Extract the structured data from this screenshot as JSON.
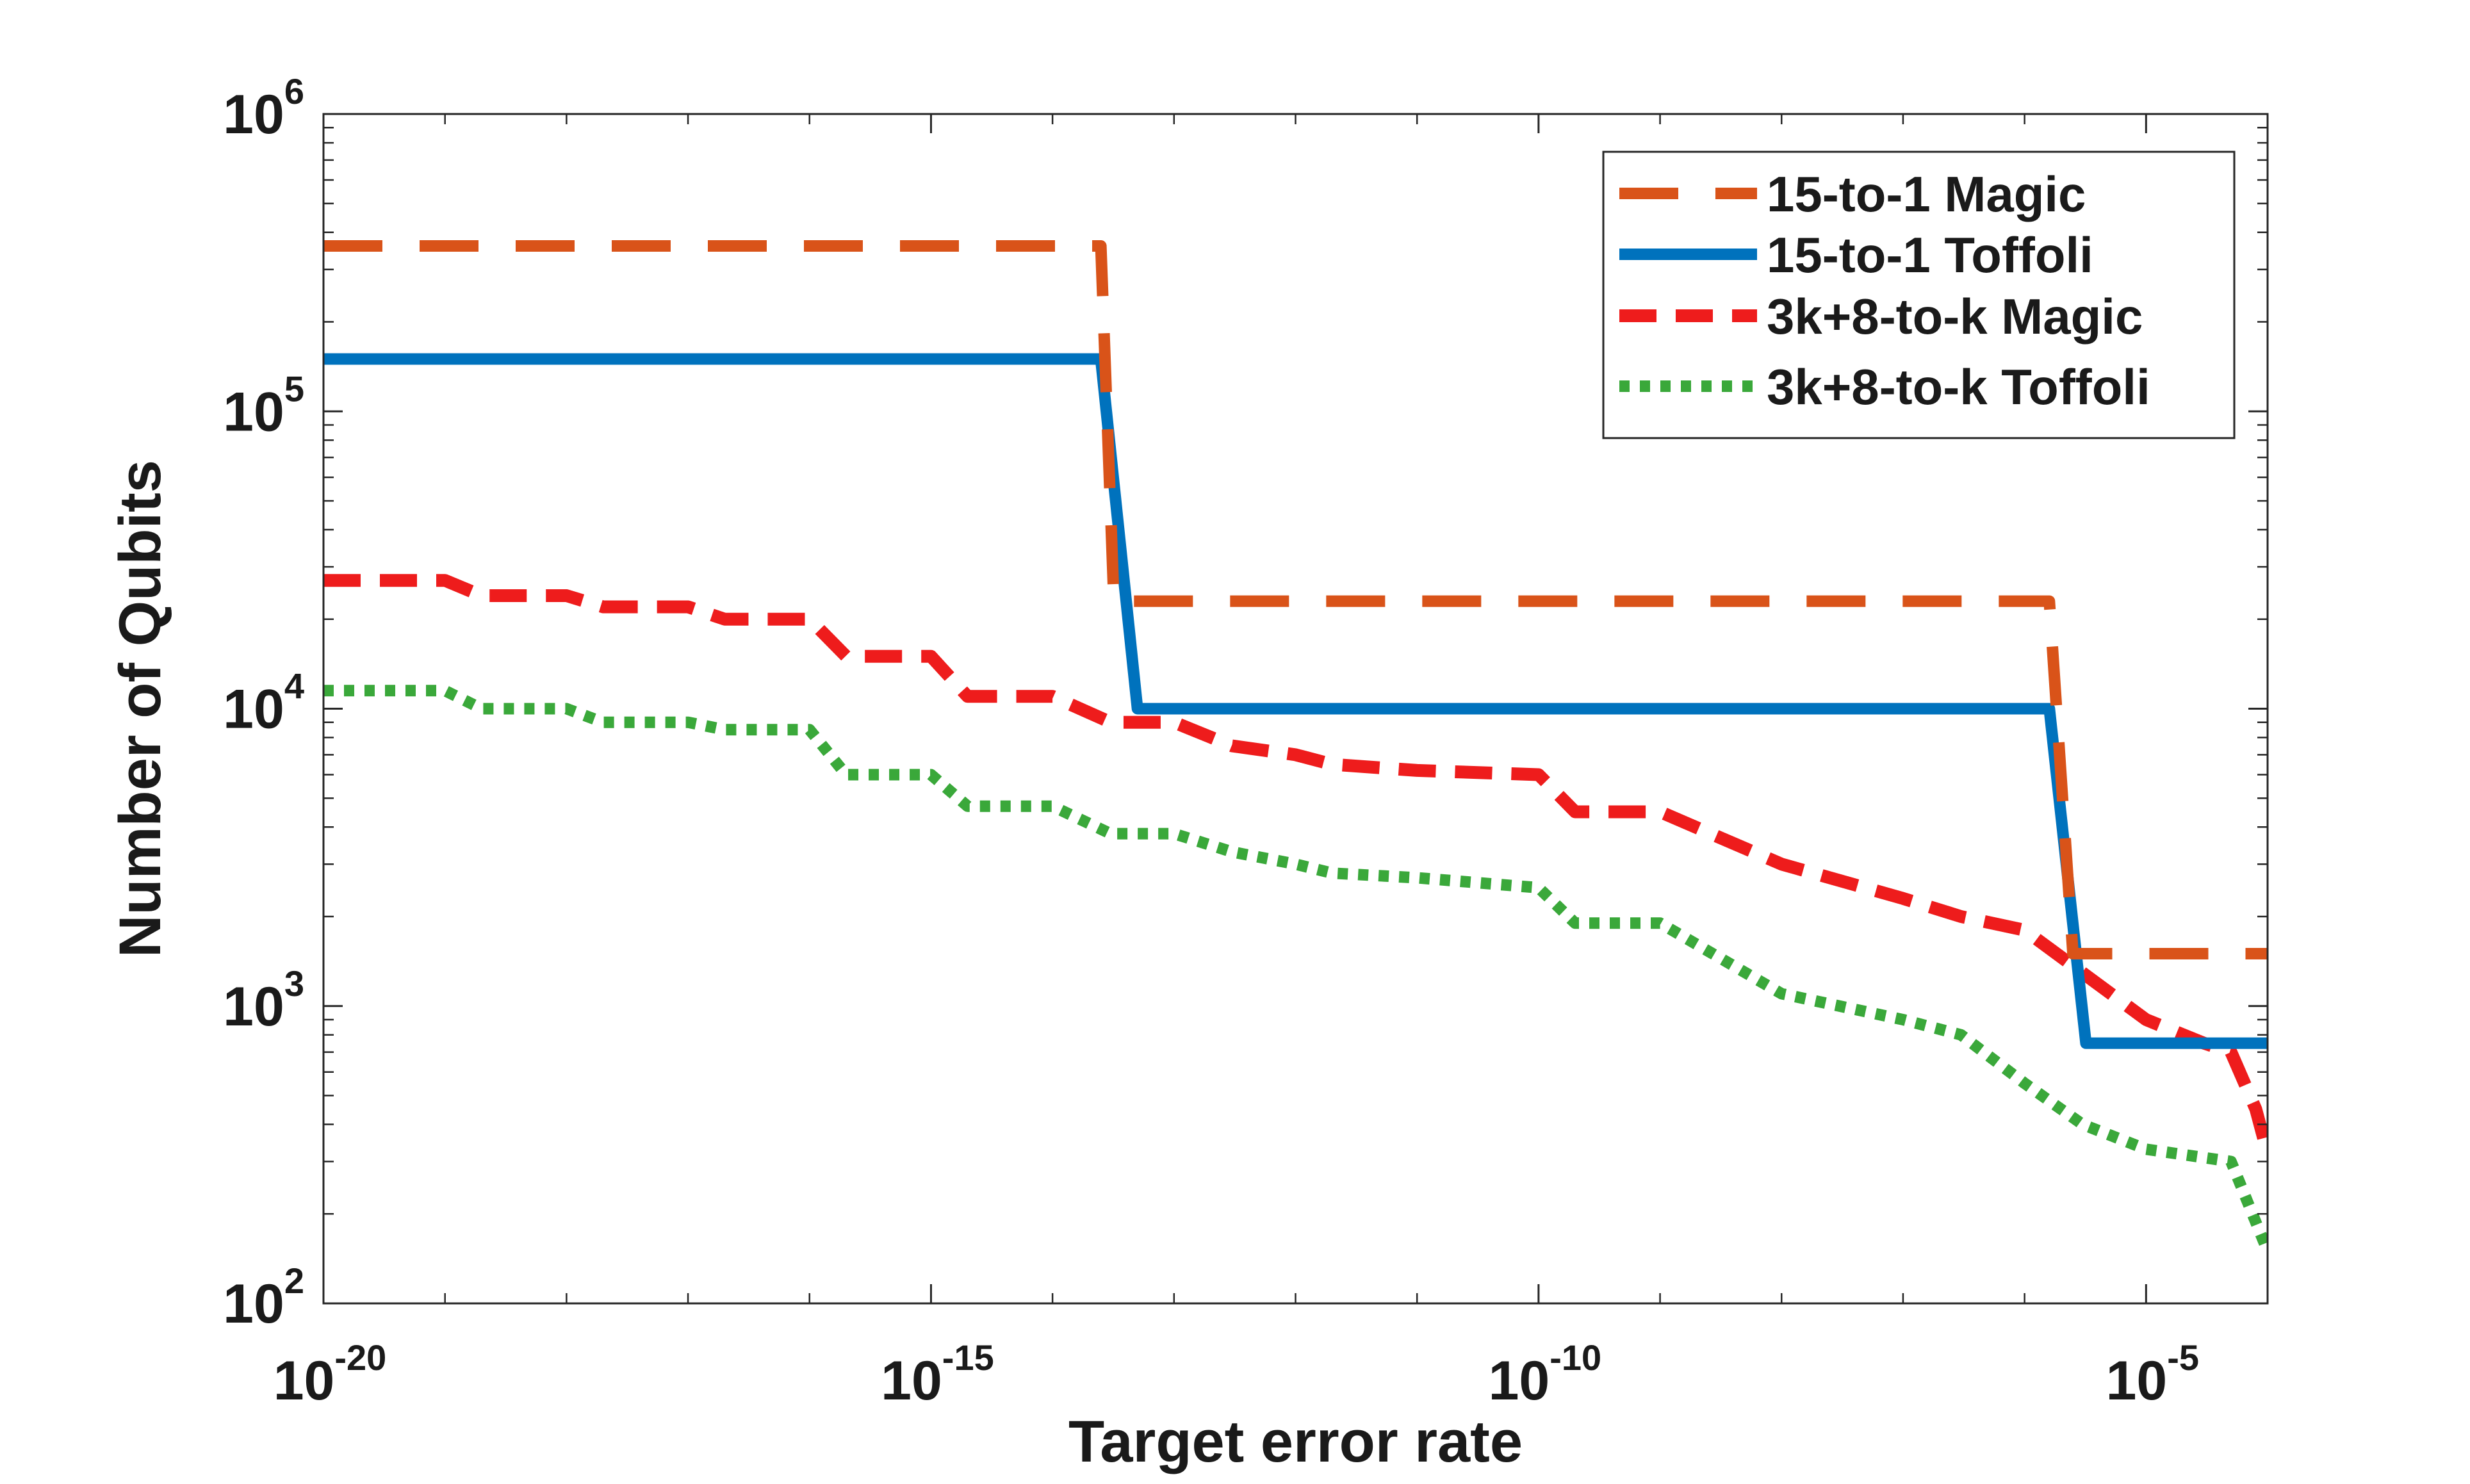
{
  "chart_data": {
    "type": "line",
    "title": "",
    "xlabel": "Target error rate",
    "ylabel": "Number of Qubits",
    "x_scale": "log",
    "y_scale": "log",
    "xlim": [
      1e-20,
      0.0001
    ],
    "ylim": [
      100,
      1000000
    ],
    "grid": false,
    "legend_position": "top-right",
    "x_ticks": [
      {
        "base": "10",
        "exp": "-20",
        "value": 1e-20
      },
      {
        "base": "10",
        "exp": "-15",
        "value": 1e-15
      },
      {
        "base": "10",
        "exp": "-10",
        "value": 1e-10
      },
      {
        "base": "10",
        "exp": "-5",
        "value": 1e-05
      }
    ],
    "y_ticks": [
      {
        "base": "10",
        "exp": "2",
        "value": 100
      },
      {
        "base": "10",
        "exp": "3",
        "value": 1000
      },
      {
        "base": "10",
        "exp": "4",
        "value": 10000
      },
      {
        "base": "10",
        "exp": "5",
        "value": 100000
      },
      {
        "base": "10",
        "exp": "6",
        "value": 1000000
      }
    ],
    "series": [
      {
        "name": "15-to-1 Magic",
        "color": "#d95319",
        "dash": "dashed",
        "points": [
          [
            1e-20,
            360000
          ],
          [
            2.5e-14,
            360000
          ],
          [
            3.2e-14,
            23000
          ],
          [
            1.6e-06,
            23000
          ],
          [
            2.5e-06,
            1500
          ],
          [
            0.0001,
            1500
          ]
        ]
      },
      {
        "name": "15-to-1 Toffoli",
        "color": "#0072bd",
        "dash": "solid",
        "points": [
          [
            1e-20,
            150000
          ],
          [
            2.5e-14,
            150000
          ],
          [
            5e-14,
            10000
          ],
          [
            1.6e-06,
            10000
          ],
          [
            3.2e-06,
            750
          ],
          [
            0.0001,
            750
          ]
        ]
      },
      {
        "name": "3k+8-to-k Magic",
        "color": "#ee1c1c",
        "dash": "dash-short",
        "points": [
          [
            1e-20,
            27000
          ],
          [
            1e-19,
            27000
          ],
          [
            2e-19,
            24000
          ],
          [
            1e-18,
            24000
          ],
          [
            2e-18,
            22000
          ],
          [
            1e-17,
            22000
          ],
          [
            2e-17,
            20000
          ],
          [
            1e-16,
            20000
          ],
          [
            2e-16,
            15000
          ],
          [
            1e-15,
            15000
          ],
          [
            2e-15,
            11000
          ],
          [
            1e-14,
            11000
          ],
          [
            3e-14,
            9000
          ],
          [
            1e-13,
            9000
          ],
          [
            3e-13,
            7500
          ],
          [
            1e-12,
            7000
          ],
          [
            2e-12,
            6500
          ],
          [
            1e-11,
            6200
          ],
          [
            1e-10,
            6000
          ],
          [
            2e-10,
            4500
          ],
          [
            1e-09,
            4500
          ],
          [
            1e-08,
            3000
          ],
          [
            1e-07,
            2300
          ],
          [
            3e-07,
            2000
          ],
          [
            1e-06,
            1800
          ],
          [
            1e-05,
            900
          ],
          [
            3e-05,
            750
          ],
          [
            5e-05,
            700
          ],
          [
            8e-05,
            450
          ],
          [
            0.0001,
            320
          ]
        ]
      },
      {
        "name": "3k+8-to-k Toffoli",
        "color": "#3aa83a",
        "dash": "dotted",
        "points": [
          [
            1e-20,
            11500
          ],
          [
            1e-19,
            11500
          ],
          [
            2e-19,
            10000
          ],
          [
            1e-18,
            10000
          ],
          [
            2e-18,
            9000
          ],
          [
            1e-17,
            9000
          ],
          [
            2e-17,
            8500
          ],
          [
            1e-16,
            8500
          ],
          [
            2e-16,
            6000
          ],
          [
            1e-15,
            6000
          ],
          [
            2e-15,
            4700
          ],
          [
            1e-14,
            4700
          ],
          [
            3e-14,
            3800
          ],
          [
            1e-13,
            3800
          ],
          [
            3e-13,
            3300
          ],
          [
            1e-12,
            3000
          ],
          [
            2e-12,
            2800
          ],
          [
            1e-11,
            2700
          ],
          [
            1e-10,
            2500
          ],
          [
            2e-10,
            1900
          ],
          [
            1e-09,
            1900
          ],
          [
            1e-08,
            1100
          ],
          [
            3e-08,
            1000
          ],
          [
            1e-07,
            900
          ],
          [
            3e-07,
            800
          ],
          [
            1e-06,
            550
          ],
          [
            3e-06,
            400
          ],
          [
            1e-05,
            330
          ],
          [
            5e-05,
            300
          ],
          [
            0.0001,
            150
          ]
        ]
      }
    ]
  }
}
